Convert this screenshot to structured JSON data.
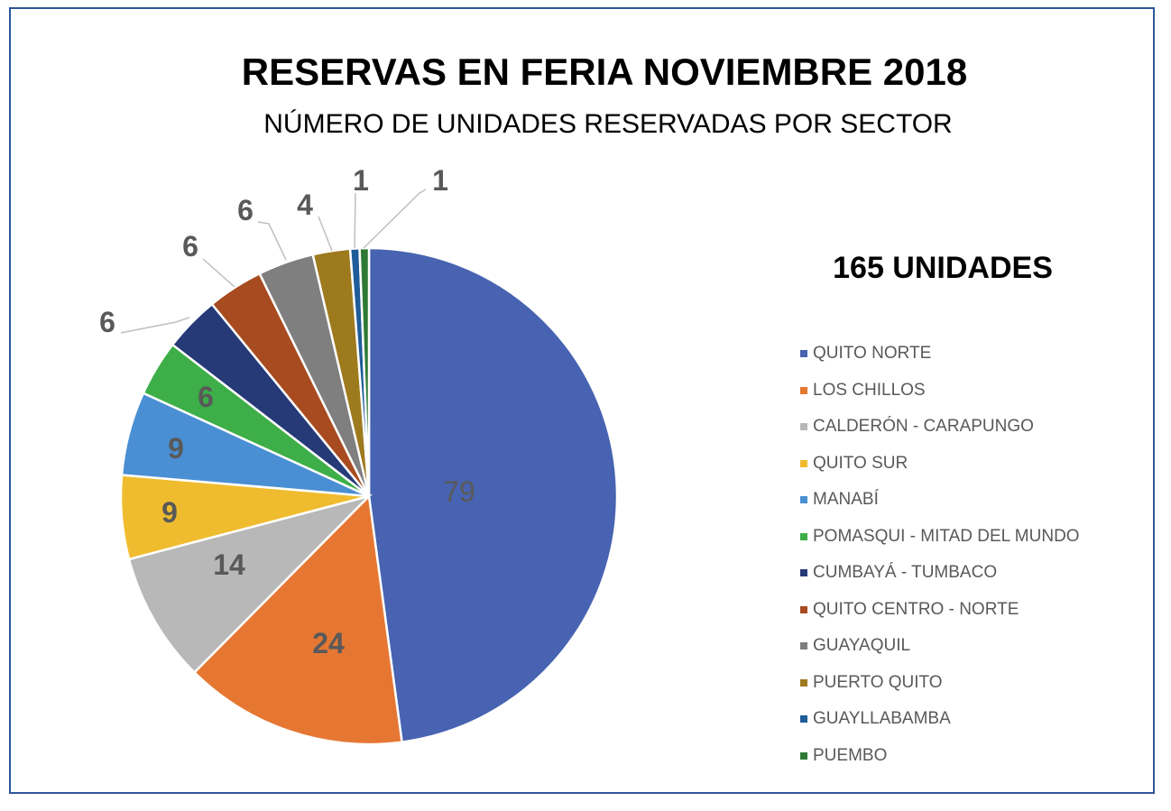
{
  "chart_data": {
    "type": "pie",
    "title": "RESERVAS EN FERIA NOVIEMBRE 2018",
    "subtitle": "NÚMERO DE UNIDADES RESERVADAS POR SECTOR",
    "annotation": "165 UNIDADES",
    "legend_position": "right",
    "categories": [
      "QUITO NORTE",
      "LOS CHILLOS",
      "CALDERÓN - CARAPUNGO",
      "QUITO SUR",
      "MANABÍ",
      "POMASQUI - MITAD DEL MUNDO",
      "CUMBAYÁ - TUMBACO",
      "QUITO CENTRO - NORTE",
      "GUAYAQUIL",
      "PUERTO QUITO",
      "GUAYLLABAMBA",
      "PUEMBO"
    ],
    "values": [
      79,
      24,
      14,
      9,
      9,
      6,
      6,
      6,
      6,
      4,
      1,
      1
    ],
    "colors": [
      "#4763B1",
      "#E67733",
      "#B7B8B7",
      "#F0BC2F",
      "#4A8FD3",
      "#3DAE48",
      "#263A78",
      "#A84B20",
      "#7F7F7F",
      "#9E7A1E",
      "#1F5C99",
      "#2E7A35"
    ]
  }
}
